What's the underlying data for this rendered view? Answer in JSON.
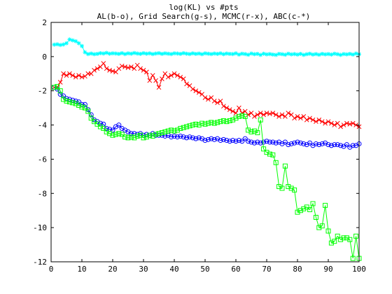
{
  "chart_data": {
    "type": "line",
    "title": "log(KL) vs #pts",
    "subtitle": "AL(b-o), Grid Search(g-s), MCMC(r-x), ABC(c-*)",
    "xlim": [
      0,
      100
    ],
    "ylim": [
      -12,
      2
    ],
    "x_ticks": [
      0,
      10,
      20,
      30,
      40,
      50,
      60,
      70,
      80,
      90,
      100
    ],
    "y_ticks": [
      -12,
      -10,
      -8,
      -6,
      -4,
      -2,
      0,
      2
    ],
    "x_tick_labels": [
      "0",
      "10",
      "20",
      "30",
      "40",
      "50",
      "60",
      "70",
      "80",
      "90",
      "100"
    ],
    "y_tick_labels": [
      "-12",
      "-10",
      "-8",
      "-6",
      "-4",
      "-2",
      "0",
      "2"
    ],
    "grid": false,
    "series": [
      {
        "key": "ABC",
        "color": "#00ffff",
        "marker": "star",
        "sampled_every": 1,
        "x": [
          1,
          2,
          3,
          4,
          5,
          6,
          7,
          8,
          9,
          10,
          11,
          12,
          13,
          14,
          15,
          16,
          17,
          18,
          19,
          20,
          21,
          22,
          23,
          24,
          25,
          26,
          27,
          28,
          29,
          30,
          31,
          32,
          33,
          34,
          35,
          36,
          37,
          38,
          39,
          40,
          41,
          42,
          43,
          44,
          45,
          46,
          47,
          48,
          49,
          50,
          51,
          52,
          53,
          54,
          55,
          56,
          57,
          58,
          59,
          60,
          61,
          62,
          63,
          64,
          65,
          66,
          67,
          68,
          69,
          70,
          71,
          72,
          73,
          74,
          75,
          76,
          77,
          78,
          79,
          80,
          81,
          82,
          83,
          84,
          85,
          86,
          87,
          88,
          89,
          90,
          91,
          92,
          93,
          94,
          95,
          96,
          97,
          98,
          99,
          100
        ],
        "y": [
          0.7,
          0.72,
          0.68,
          0.71,
          0.78,
          1.0,
          0.95,
          0.9,
          0.78,
          0.62,
          0.25,
          0.15,
          0.18,
          0.14,
          0.16,
          0.2,
          0.18,
          0.22,
          0.17,
          0.19,
          0.18,
          0.16,
          0.2,
          0.15,
          0.19,
          0.17,
          0.21,
          0.18,
          0.16,
          0.2,
          0.17,
          0.19,
          0.15,
          0.18,
          0.2,
          0.16,
          0.19,
          0.17,
          0.15,
          0.19,
          0.18,
          0.16,
          0.2,
          0.17,
          0.15,
          0.19,
          0.16,
          0.18,
          0.14,
          0.19,
          0.17,
          0.15,
          0.18,
          0.16,
          0.19,
          0.14,
          0.18,
          0.16,
          0.15,
          0.19,
          0.12,
          0.17,
          0.15,
          0.11,
          0.18,
          0.14,
          0.16,
          0.1,
          0.17,
          0.13,
          0.15,
          0.12,
          0.1,
          0.16,
          0.14,
          0.11,
          0.17,
          0.13,
          0.15,
          0.12,
          0.16,
          0.1,
          0.14,
          0.17,
          0.12,
          0.15,
          0.11,
          0.16,
          0.13,
          0.15,
          0.12,
          0.17,
          0.14,
          0.1,
          0.15,
          0.13,
          0.16,
          0.12,
          0.18,
          0.14
        ]
      },
      {
        "key": "MCMC",
        "color": "#ff0000",
        "marker": "x",
        "sampled_every": 1,
        "x": [
          1,
          2,
          3,
          4,
          5,
          6,
          7,
          8,
          9,
          10,
          11,
          12,
          13,
          14,
          15,
          16,
          17,
          18,
          19,
          20,
          21,
          22,
          23,
          24,
          25,
          26,
          27,
          28,
          29,
          30,
          31,
          32,
          33,
          34,
          35,
          36,
          37,
          38,
          39,
          40,
          41,
          42,
          43,
          44,
          45,
          46,
          47,
          48,
          49,
          50,
          51,
          52,
          53,
          54,
          55,
          56,
          57,
          58,
          59,
          60,
          61,
          62,
          63,
          64,
          65,
          66,
          67,
          68,
          69,
          70,
          71,
          72,
          73,
          74,
          75,
          76,
          77,
          78,
          79,
          80,
          81,
          82,
          83,
          84,
          85,
          86,
          87,
          88,
          89,
          90,
          91,
          92,
          93,
          94,
          95,
          96,
          97,
          98,
          99,
          100
        ],
        "y": [
          -1.8,
          -1.8,
          -1.5,
          -1.0,
          -1.1,
          -1.0,
          -1.1,
          -1.2,
          -1.1,
          -1.2,
          -1.15,
          -1.0,
          -1.0,
          -0.8,
          -0.7,
          -0.6,
          -0.4,
          -0.7,
          -0.8,
          -0.85,
          -0.9,
          -0.7,
          -0.55,
          -0.6,
          -0.65,
          -0.6,
          -0.7,
          -0.5,
          -0.7,
          -0.8,
          -0.9,
          -1.4,
          -1.1,
          -1.4,
          -1.8,
          -1.3,
          -1.0,
          -1.2,
          -1.1,
          -1.0,
          -1.1,
          -1.2,
          -1.3,
          -1.6,
          -1.7,
          -1.9,
          -2.0,
          -2.1,
          -2.2,
          -2.4,
          -2.5,
          -2.4,
          -2.6,
          -2.7,
          -2.6,
          -2.9,
          -3.0,
          -3.1,
          -3.2,
          -3.3,
          -3.0,
          -3.3,
          -3.2,
          -3.4,
          -3.3,
          -3.5,
          -3.4,
          -3.3,
          -3.4,
          -3.3,
          -3.35,
          -3.3,
          -3.4,
          -3.5,
          -3.4,
          -3.5,
          -3.3,
          -3.4,
          -3.6,
          -3.5,
          -3.6,
          -3.5,
          -3.7,
          -3.6,
          -3.7,
          -3.8,
          -3.7,
          -3.8,
          -3.9,
          -3.8,
          -3.9,
          -4.0,
          -3.9,
          -4.1,
          -4.0,
          -3.9,
          -3.95,
          -3.9,
          -4.0,
          -4.1
        ]
      },
      {
        "key": "AL",
        "color": "#0000ff",
        "marker": "circle",
        "sampled_every": 1,
        "x": [
          1,
          2,
          3,
          4,
          5,
          6,
          7,
          8,
          9,
          10,
          11,
          12,
          13,
          14,
          15,
          16,
          17,
          18,
          19,
          20,
          21,
          22,
          23,
          24,
          25,
          26,
          27,
          28,
          29,
          30,
          31,
          32,
          33,
          34,
          35,
          36,
          37,
          38,
          39,
          40,
          41,
          42,
          43,
          44,
          45,
          46,
          47,
          48,
          49,
          50,
          51,
          52,
          53,
          54,
          55,
          56,
          57,
          58,
          59,
          60,
          61,
          62,
          63,
          64,
          65,
          66,
          67,
          68,
          69,
          70,
          71,
          72,
          73,
          74,
          75,
          76,
          77,
          78,
          79,
          80,
          81,
          82,
          83,
          84,
          85,
          86,
          87,
          88,
          89,
          90,
          91,
          92,
          93,
          94,
          95,
          96,
          97,
          98,
          99,
          100
        ],
        "y": [
          -1.8,
          -1.9,
          -2.2,
          -2.3,
          -2.45,
          -2.5,
          -2.55,
          -2.6,
          -2.65,
          -2.8,
          -2.8,
          -3.1,
          -3.4,
          -3.7,
          -3.8,
          -3.9,
          -3.95,
          -4.2,
          -4.25,
          -4.3,
          -4.1,
          -4.0,
          -4.2,
          -4.3,
          -4.4,
          -4.5,
          -4.5,
          -4.55,
          -4.5,
          -4.6,
          -4.55,
          -4.6,
          -4.5,
          -4.6,
          -4.6,
          -4.6,
          -4.65,
          -4.6,
          -4.7,
          -4.65,
          -4.7,
          -4.65,
          -4.7,
          -4.75,
          -4.7,
          -4.75,
          -4.8,
          -4.75,
          -4.8,
          -4.9,
          -4.85,
          -4.8,
          -4.85,
          -4.8,
          -4.9,
          -4.85,
          -4.9,
          -4.95,
          -4.9,
          -4.95,
          -4.9,
          -4.95,
          -4.8,
          -4.95,
          -5.0,
          -5.05,
          -5.0,
          -5.05,
          -5.0,
          -4.95,
          -5.0,
          -5.0,
          -5.05,
          -5.0,
          -5.1,
          -5.0,
          -5.15,
          -5.1,
          -5.05,
          -5.0,
          -5.05,
          -5.1,
          -5.15,
          -5.05,
          -5.2,
          -5.1,
          -5.15,
          -5.1,
          -5.05,
          -5.15,
          -5.2,
          -5.15,
          -5.15,
          -5.2,
          -5.25,
          -5.15,
          -5.3,
          -5.2,
          -5.2,
          -5.1
        ]
      },
      {
        "key": "Grid Search",
        "color": "#00ff00",
        "marker": "square",
        "sampled_every": 1,
        "x": [
          1,
          2,
          3,
          4,
          5,
          6,
          7,
          8,
          9,
          10,
          11,
          12,
          13,
          14,
          15,
          16,
          17,
          18,
          19,
          20,
          21,
          22,
          23,
          24,
          25,
          26,
          27,
          28,
          29,
          30,
          31,
          32,
          33,
          34,
          35,
          36,
          37,
          38,
          39,
          40,
          41,
          42,
          43,
          44,
          45,
          46,
          47,
          48,
          49,
          50,
          51,
          52,
          53,
          54,
          55,
          56,
          57,
          58,
          59,
          60,
          61,
          62,
          63,
          64,
          65,
          66,
          67,
          68,
          69,
          70,
          71,
          72,
          73,
          74,
          75,
          76,
          77,
          78,
          79,
          80,
          81,
          82,
          83,
          84,
          85,
          86,
          87,
          88,
          89,
          90,
          91,
          92,
          93,
          94,
          95,
          96,
          97,
          98,
          99,
          100
        ],
        "y": [
          -1.8,
          -1.75,
          -2.0,
          -2.5,
          -2.6,
          -2.65,
          -2.7,
          -2.75,
          -2.85,
          -2.95,
          -3.0,
          -3.2,
          -3.6,
          -3.8,
          -3.95,
          -4.1,
          -4.2,
          -4.4,
          -4.5,
          -4.6,
          -4.55,
          -4.5,
          -4.55,
          -4.7,
          -4.75,
          -4.7,
          -4.75,
          -4.65,
          -4.6,
          -4.75,
          -4.7,
          -4.6,
          -4.65,
          -4.55,
          -4.5,
          -4.45,
          -4.4,
          -4.35,
          -4.3,
          -4.35,
          -4.3,
          -4.2,
          -4.15,
          -4.1,
          -4.05,
          -4.0,
          -3.95,
          -4.0,
          -3.9,
          -3.95,
          -3.9,
          -3.85,
          -3.9,
          -3.85,
          -3.8,
          -3.75,
          -3.8,
          -3.75,
          -3.7,
          -3.6,
          -3.5,
          -3.45,
          -3.5,
          -4.3,
          -4.4,
          -4.35,
          -4.45,
          -3.7,
          -5.4,
          -5.6,
          -5.7,
          -5.75,
          -6.2,
          -7.6,
          -7.7,
          -6.4,
          -7.6,
          -7.7,
          -7.8,
          -9.1,
          -9.0,
          -8.9,
          -8.8,
          -8.95,
          -8.6,
          -9.4,
          -10.0,
          -9.9,
          -8.7,
          -10.2,
          -10.9,
          -10.8,
          -10.5,
          -10.7,
          -10.6,
          -10.6,
          -10.7,
          -11.8,
          -10.5,
          -11.8
        ]
      }
    ]
  }
}
